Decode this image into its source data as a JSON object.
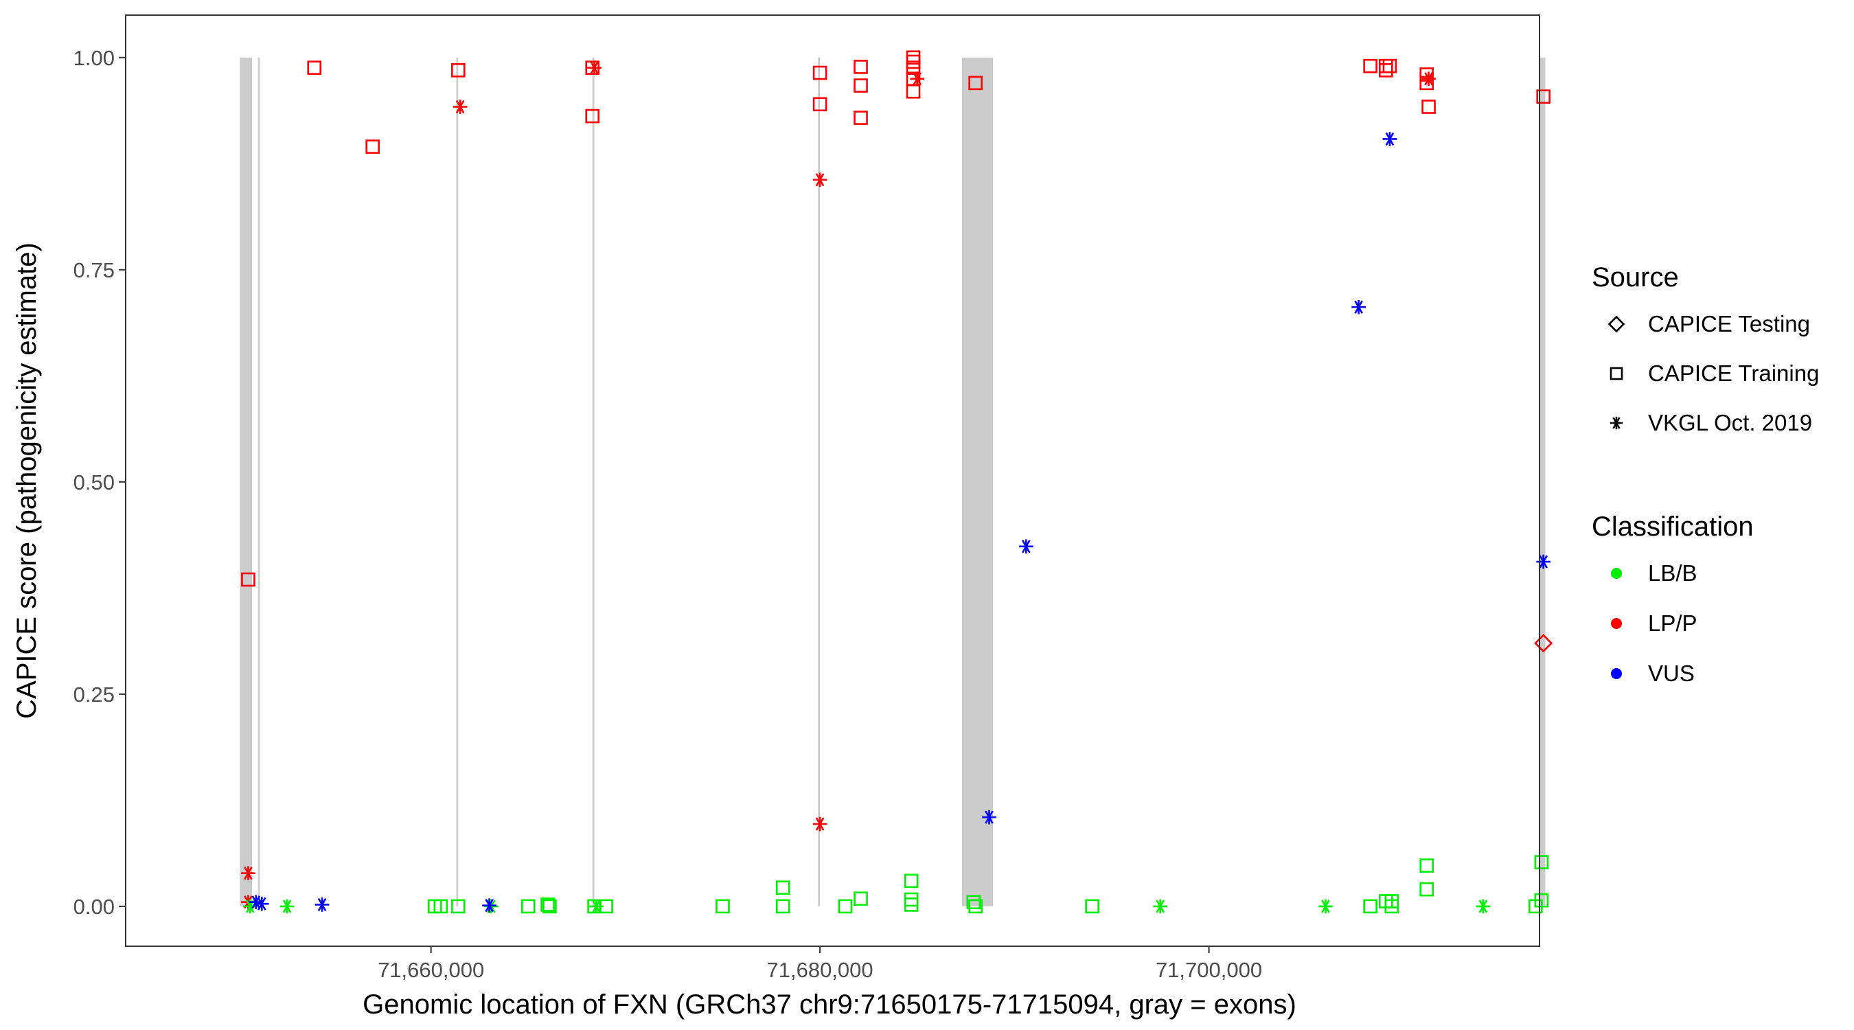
{
  "chart_data": {
    "type": "scatter",
    "xlabel": "Genomic location of FXN (GRCh37 chr9:71650175-71715094, gray = exons)",
    "ylabel": "CAPICE score (pathogenicity estimate)",
    "xlim": [
      71644300,
      71717000
    ],
    "ylim": [
      -0.047,
      1.05
    ],
    "x_ticks": [
      71660000,
      71680000,
      71700000
    ],
    "x_tick_labels": [
      "71,660,000",
      "71,680,000",
      "71,700,000"
    ],
    "y_ticks": [
      0.0,
      0.25,
      0.5,
      0.75,
      1.0
    ],
    "y_tick_labels": [
      "0.00",
      "0.25",
      "0.50",
      "0.75",
      "1.00"
    ],
    "grid": false,
    "legend_position": "right",
    "exons": [
      [
        71650175,
        71650800
      ],
      [
        71651100,
        71651200
      ],
      [
        71661300,
        71661400
      ],
      [
        71668300,
        71668400
      ],
      [
        71679900,
        71680000
      ],
      [
        71687300,
        71688900
      ],
      [
        71717000,
        71717300
      ]
    ],
    "legend": {
      "source_title": "Source",
      "source_items": [
        {
          "label": "CAPICE Testing",
          "shape": "diamond"
        },
        {
          "label": "CAPICE Training",
          "shape": "square"
        },
        {
          "label": "VKGL Oct. 2019",
          "shape": "asterisk"
        }
      ],
      "class_title": "Classification",
      "class_items": [
        {
          "label": "LB/B",
          "color": "#00ee00"
        },
        {
          "label": "LP/P",
          "color": "#ff0000"
        },
        {
          "label": "VUS",
          "color": "#0000ff"
        }
      ]
    },
    "colors": {
      "LB/B": "#00ee00",
      "LP/P": "#ff0000",
      "VUS": "#0000ff"
    },
    "series": [
      {
        "source": "CAPICE Testing",
        "shape": "diamond",
        "class": "LP/P",
        "points": [
          [
            71717200,
            0.31
          ]
        ]
      },
      {
        "source": "CAPICE Training",
        "shape": "square",
        "class": "LP/P",
        "points": [
          [
            71654000,
            0.988
          ],
          [
            71650600,
            0.385
          ],
          [
            71657000,
            0.895
          ],
          [
            71661400,
            0.985
          ],
          [
            71668300,
            0.988
          ],
          [
            71668300,
            0.931
          ],
          [
            71680000,
            0.982
          ],
          [
            71680000,
            0.945
          ],
          [
            71682100,
            0.989
          ],
          [
            71682100,
            0.967
          ],
          [
            71682100,
            0.929
          ],
          [
            71684800,
            1.0
          ],
          [
            71684800,
            0.995
          ],
          [
            71684800,
            0.988
          ],
          [
            71684800,
            0.975
          ],
          [
            71684800,
            0.96
          ],
          [
            71688000,
            0.97
          ],
          [
            71708300,
            0.99
          ],
          [
            71709100,
            0.99
          ],
          [
            71709100,
            0.985
          ],
          [
            71709300,
            0.99
          ],
          [
            71711200,
            0.98
          ],
          [
            71711200,
            0.97
          ],
          [
            71711300,
            0.942
          ],
          [
            71717200,
            0.954
          ]
        ]
      },
      {
        "source": "CAPICE Training",
        "shape": "square",
        "class": "LB/B",
        "points": [
          [
            71660200,
            0.0
          ],
          [
            71660500,
            0.0
          ],
          [
            71661400,
            0.0
          ],
          [
            71665000,
            0.0
          ],
          [
            71666000,
            0.002
          ],
          [
            71666100,
            0.0
          ],
          [
            71668400,
            0.0
          ],
          [
            71669000,
            0.0
          ],
          [
            71675000,
            0.0
          ],
          [
            71678100,
            0.022
          ],
          [
            71678100,
            0.0
          ],
          [
            71681300,
            0.0
          ],
          [
            71682100,
            0.009
          ],
          [
            71684700,
            0.03
          ],
          [
            71684700,
            0.008
          ],
          [
            71684700,
            0.002
          ],
          [
            71687900,
            0.005
          ],
          [
            71688000,
            0.0
          ],
          [
            71694000,
            0.0
          ],
          [
            71708300,
            0.0
          ],
          [
            71709100,
            0.006
          ],
          [
            71709400,
            0.006
          ],
          [
            71709400,
            0.0
          ],
          [
            71711200,
            0.048
          ],
          [
            71711200,
            0.02
          ],
          [
            71716800,
            0.0
          ],
          [
            71717100,
            0.052
          ],
          [
            71717100,
            0.007
          ]
        ]
      },
      {
        "source": "VKGL Oct. 2019",
        "shape": "asterisk",
        "class": "LP/P",
        "points": [
          [
            71650600,
            0.039
          ],
          [
            71650600,
            0.005
          ],
          [
            71661500,
            0.942
          ],
          [
            71668400,
            0.988
          ],
          [
            71680000,
            0.856
          ],
          [
            71680000,
            0.097
          ],
          [
            71685000,
            0.975
          ],
          [
            71711300,
            0.975
          ]
        ]
      },
      {
        "source": "VKGL Oct. 2019",
        "shape": "asterisk",
        "class": "LB/B",
        "points": [
          [
            71650700,
            0.0
          ],
          [
            71652600,
            0.0
          ],
          [
            71668500,
            0.0
          ],
          [
            71697500,
            0.0
          ],
          [
            71706000,
            0.0
          ],
          [
            71714100,
            0.0
          ],
          [
            71663100,
            0.0
          ]
        ]
      },
      {
        "source": "VKGL Oct. 2019",
        "shape": "asterisk",
        "class": "VUS",
        "points": [
          [
            71651000,
            0.005
          ],
          [
            71651300,
            0.003
          ],
          [
            71654400,
            0.002
          ],
          [
            71663000,
            0.001
          ],
          [
            71688700,
            0.105
          ],
          [
            71690600,
            0.424
          ],
          [
            71707700,
            0.706
          ],
          [
            71709300,
            0.904
          ],
          [
            71717200,
            0.406
          ]
        ]
      }
    ]
  }
}
